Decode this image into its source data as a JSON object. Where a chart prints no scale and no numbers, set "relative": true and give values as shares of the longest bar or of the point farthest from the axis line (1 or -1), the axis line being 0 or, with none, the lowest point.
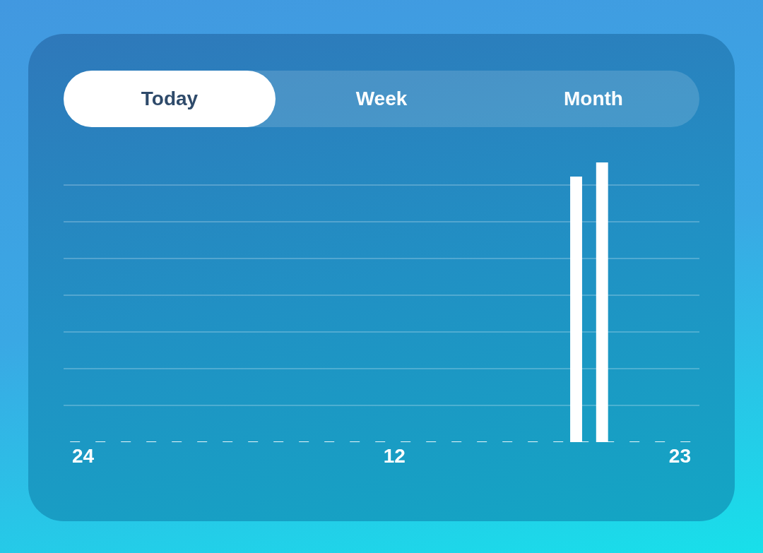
{
  "chart_data": {
    "type": "bar",
    "relative": true,
    "grid": "y",
    "color": "#ffffff",
    "categories": [
      "24",
      null,
      null,
      null,
      null,
      null,
      null,
      null,
      null,
      null,
      null,
      null,
      "12",
      null,
      null,
      null,
      null,
      null,
      null,
      null,
      null,
      null,
      null,
      "23"
    ],
    "values": [
      null,
      null,
      null,
      null,
      null,
      null,
      null,
      null,
      null,
      null,
      null,
      null,
      null,
      null,
      null,
      null,
      null,
      null,
      null,
      0.95,
      1,
      null,
      null,
      null
    ],
    "annotations": [
      "Today",
      "Week",
      "Month"
    ]
  }
}
